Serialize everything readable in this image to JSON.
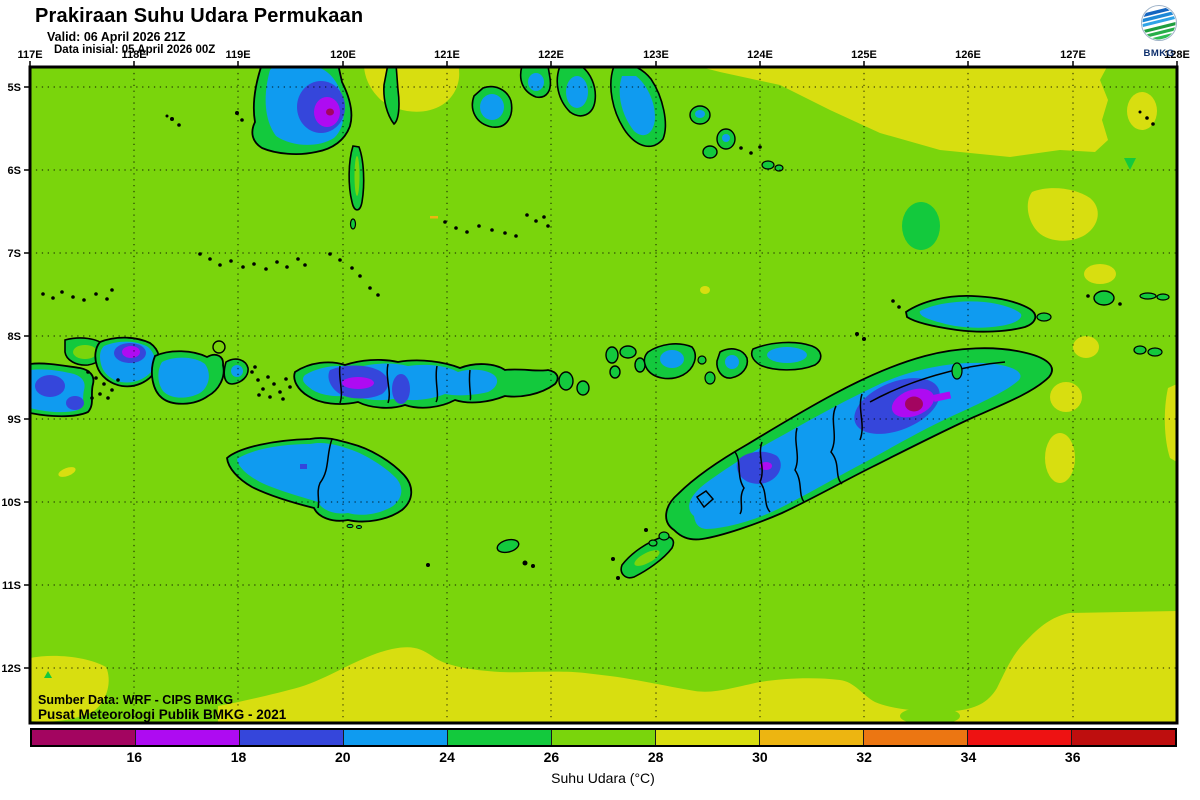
{
  "header": {
    "title": "Prakiraan Suhu Udara Permukaan",
    "valid": "Valid: 06 April 2026 21Z",
    "data_initial": "Data inisial: 05 April 2026 00Z",
    "logo_text": "BMKG"
  },
  "map": {
    "lon_labels": [
      "117E",
      "118E",
      "119E",
      "120E",
      "121E",
      "122E",
      "123E",
      "124E",
      "125E",
      "126E",
      "127E",
      "128E"
    ],
    "lat_labels": [
      "5S",
      "6S",
      "7S",
      "8S",
      "9S",
      "10S",
      "11S",
      "12S"
    ],
    "credit_line1": "Sumber Data: WRF - CIPS BMKG",
    "credit_line2": "Pusat Meteorologi Publik BMKG - 2021"
  },
  "colorbar": {
    "caption": "Suhu Udara (°C)",
    "unit": "°C",
    "tick_labels": [
      "16",
      "18",
      "20",
      "24",
      "26",
      "28",
      "30",
      "32",
      "34",
      "36"
    ],
    "colors": [
      "#A30560",
      "#AE0BF2",
      "#3546DB",
      "#0F9BF0",
      "#13C93D",
      "#7AD50C",
      "#D8DE10",
      "#EDB511",
      "#EC7612",
      "#EE1212",
      "#BE0E0E"
    ]
  },
  "chart_data": {
    "type": "heatmap",
    "title": "Prakiraan Suhu Udara Permukaan",
    "variable": "Suhu Udara (°C)",
    "valid_time": "06 April 2026 21Z",
    "initial_time": "05 April 2026 00Z",
    "lon_range_deg_e": [
      117,
      128
    ],
    "lat_range_deg_s": [
      5,
      12
    ],
    "grid": "dotted 1-degree graticule",
    "scale_bounds_c": [
      16,
      18,
      20,
      24,
      26,
      28,
      30,
      32,
      34,
      36
    ],
    "scale_colors": [
      "#A30560",
      "#AE0BF2",
      "#3546DB",
      "#0F9BF0",
      "#13C93D",
      "#7AD50C",
      "#D8DE10",
      "#EDB511",
      "#EC7612",
      "#EE1212",
      "#BE0E0E"
    ],
    "summary": "Sea surface air mostly 26-28C (yellow-green); 28-30C (yellow) band along NE sector and along the southern/SE edges; islands mostly 20-24C (blue) with 24-26C (green) coastal fringes; cold cores 18-20C and 16-18C over mountains of South Sulawesi (~120E 5.3S), Lombok (~118E 8.4S), Flores (~120.4E 8.7S), West Timor (~124E 9.8S) and central Timor (~125.5E 9.1S) with small spots below 16C."
  }
}
